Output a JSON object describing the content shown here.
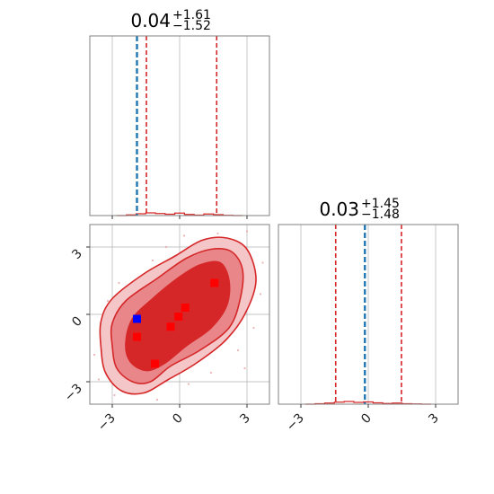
{
  "chart_data": {
    "type": "corner",
    "colors": {
      "posterior": "#d62728",
      "truth": "#1f77b4",
      "mode_markers": "#ff0000",
      "truth_marker": "#0000ff",
      "grid": "#b0b0b0",
      "frame": "#808080"
    },
    "grid": true,
    "panels": [
      {
        "kind": "marginal",
        "param_index": 0,
        "title": {
          "median": "0.04",
          "plus": "+1.61",
          "minus": "−1.52"
        },
        "xlim": [
          -4.0,
          4.0
        ],
        "truth": -1.9,
        "quantile_lines": [
          -1.48,
          1.65
        ],
        "x_ticks": [
          -3,
          0,
          3
        ],
        "y_ticks": [],
        "hist_counts": [
          0,
          0.3,
          0.8,
          1.2,
          0.9,
          0.6,
          1.1,
          0.5,
          0.2,
          0.7,
          0.4,
          0.1,
          0
        ]
      },
      {
        "kind": "marginal",
        "param_index": 1,
        "title": {
          "median": "0.03",
          "plus": "+1.45",
          "minus": "−1.48"
        },
        "xlim": [
          -4.0,
          4.0
        ],
        "truth": -0.15,
        "quantile_lines": [
          -1.45,
          1.48
        ],
        "x_ticks": [
          -3,
          0,
          3
        ],
        "x_tick_labels": [
          "−3",
          "0",
          "3"
        ],
        "y_ticks": [],
        "hist_counts": [
          0,
          0.2,
          0.5,
          0.9,
          1.2,
          0.8,
          1.0,
          0.6,
          0.3,
          0.5,
          0.2,
          0.1,
          0
        ]
      },
      {
        "kind": "joint",
        "params": [
          0,
          1
        ],
        "xlim": [
          -4.0,
          4.0
        ],
        "ylim": [
          -4.0,
          4.0
        ],
        "x_ticks": [
          -3,
          0,
          3
        ],
        "x_tick_labels": [
          "−3",
          "0",
          "3"
        ],
        "y_ticks": [
          -3,
          0,
          3
        ],
        "y_tick_labels": [
          "−3",
          "0",
          "3"
        ],
        "contour_levels": [
          {
            "level": "outer",
            "fill": "#f4c6c8",
            "points": [
              [
                -3.5,
                -1.5
              ],
              [
                -3.3,
                -2.6
              ],
              [
                -2.6,
                -3.4
              ],
              [
                -1.6,
                -3.5
              ],
              [
                -0.5,
                -2.9
              ],
              [
                0.7,
                -2.2
              ],
              [
                2.0,
                -1.2
              ],
              [
                2.9,
                0.0
              ],
              [
                3.4,
                1.5
              ],
              [
                3.0,
                2.9
              ],
              [
                2.1,
                3.4
              ],
              [
                1.0,
                3.3
              ],
              [
                -0.2,
                2.6
              ],
              [
                -1.6,
                1.8
              ],
              [
                -3.0,
                0.7
              ],
              [
                -3.5,
                -0.3
              ]
            ]
          },
          {
            "level": "middle",
            "fill": "#e8868a",
            "points": [
              [
                -3.0,
                -1.4
              ],
              [
                -2.8,
                -2.4
              ],
              [
                -2.1,
                -3.0
              ],
              [
                -1.3,
                -3.0
              ],
              [
                -0.4,
                -2.3
              ],
              [
                0.9,
                -1.6
              ],
              [
                2.2,
                -0.6
              ],
              [
                2.7,
                0.7
              ],
              [
                2.8,
                2.0
              ],
              [
                2.3,
                2.8
              ],
              [
                1.4,
                2.9
              ],
              [
                0.3,
                2.5
              ],
              [
                -1.0,
                1.6
              ],
              [
                -2.4,
                0.6
              ],
              [
                -3.0,
                -0.4
              ]
            ]
          },
          {
            "level": "inner",
            "fill": "#d62728",
            "points": [
              [
                -2.4,
                -1.3
              ],
              [
                -2.2,
                -2.1
              ],
              [
                -1.5,
                -2.5
              ],
              [
                -0.7,
                -2.2
              ],
              [
                0.3,
                -1.4
              ],
              [
                1.4,
                -0.6
              ],
              [
                2.1,
                0.4
              ],
              [
                2.2,
                1.5
              ],
              [
                1.8,
                2.3
              ],
              [
                0.9,
                2.2
              ],
              [
                -0.1,
                1.6
              ],
              [
                -1.2,
                0.7
              ],
              [
                -2.1,
                -0.2
              ]
            ]
          }
        ],
        "scatter_outliers": [
          [
            -3.8,
            -1.8
          ],
          [
            -3.6,
            -2.9
          ],
          [
            -3.2,
            0.6
          ],
          [
            -2.7,
            1.4
          ],
          [
            -2.9,
            -3.6
          ],
          [
            -1.0,
            -3.8
          ],
          [
            0.4,
            -3.1
          ],
          [
            1.4,
            -2.6
          ],
          [
            2.6,
            -1.6
          ],
          [
            3.3,
            -0.6
          ],
          [
            3.6,
            0.9
          ],
          [
            3.7,
            2.3
          ],
          [
            3.0,
            3.7
          ],
          [
            1.7,
            3.6
          ],
          [
            0.2,
            3.5
          ],
          [
            -1.2,
            2.4
          ],
          [
            -0.6,
            3.0
          ],
          [
            2.9,
            -2.4
          ],
          [
            -3.4,
            -0.9
          ],
          [
            3.2,
            1.8
          ]
        ],
        "mode_markers": [
          [
            1.55,
            1.4
          ],
          [
            0.25,
            0.3
          ],
          [
            -0.05,
            -0.1
          ],
          [
            -0.4,
            -0.55
          ],
          [
            -1.9,
            -1.0
          ],
          [
            -1.1,
            -2.2
          ]
        ],
        "truth_marker": [
          -1.9,
          -0.2
        ]
      }
    ]
  }
}
